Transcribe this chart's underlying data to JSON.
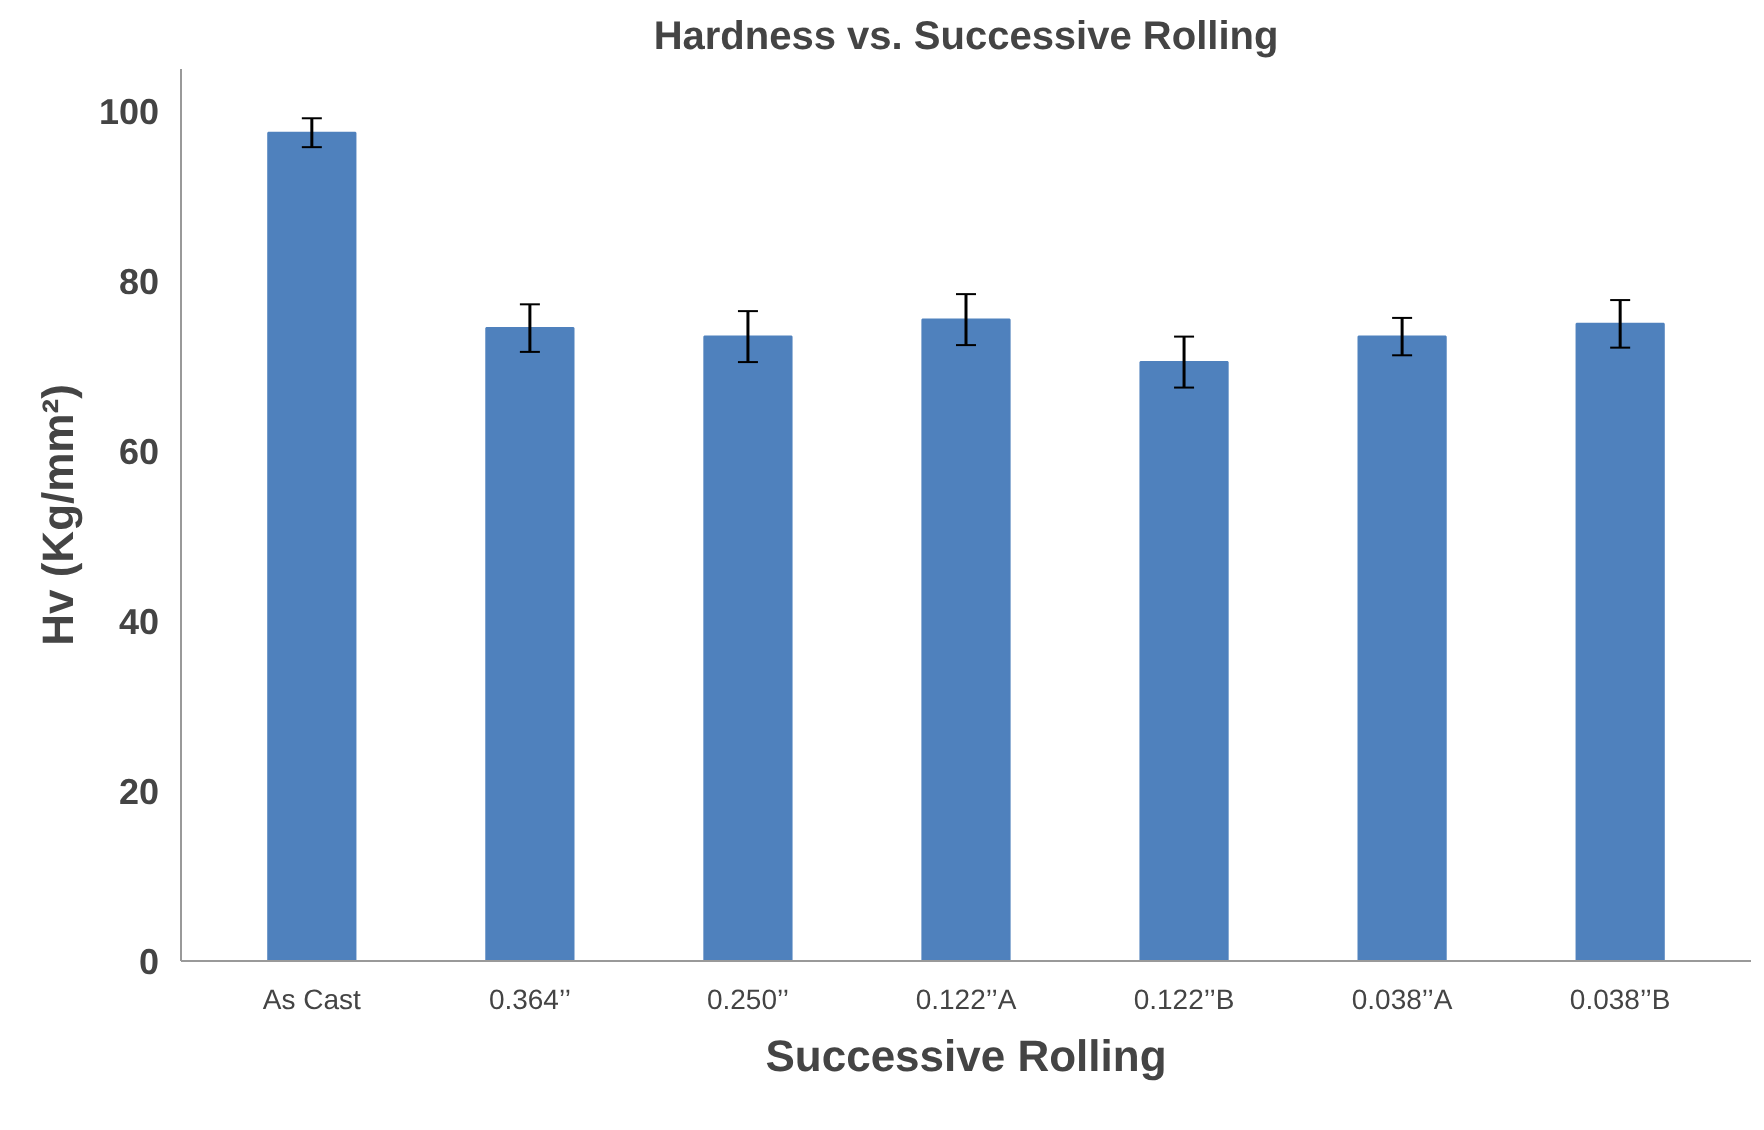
{
  "chart_data": {
    "type": "bar",
    "title": "Hardness vs. Successive Rolling",
    "xlabel": "Successive Rolling",
    "ylabel": "Hv (Kg/mm²)",
    "categories": [
      "As Cast",
      "0.364’’",
      "0.250’’",
      "0.122’’A",
      "0.122’’B",
      "0.038’’A",
      "0.038’’B"
    ],
    "values": [
      97.5,
      74.5,
      73.5,
      75.5,
      70.5,
      73.5,
      75
    ],
    "errors": [
      1.7,
      2.8,
      3,
      3,
      3,
      2.2,
      2.8
    ],
    "color": "#4f81bd",
    "ylim": [
      0,
      105
    ],
    "yticks": [
      0,
      20,
      40,
      60,
      80,
      100
    ],
    "grid": false
  }
}
